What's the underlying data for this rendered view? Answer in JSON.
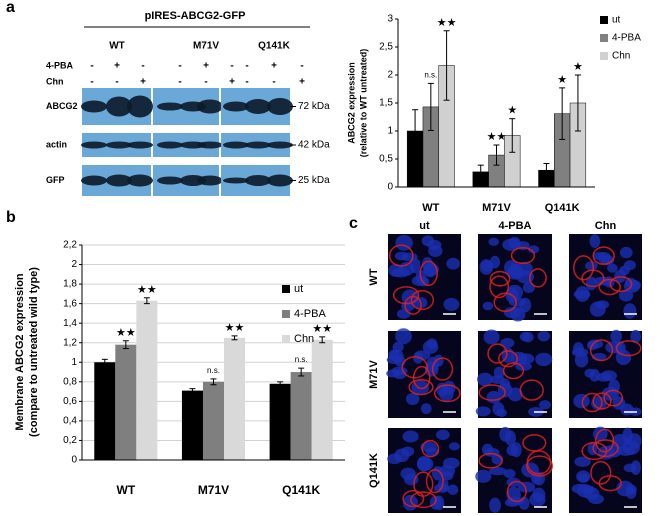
{
  "panel_labels": [
    "a",
    "b",
    "c"
  ],
  "blot": {
    "header": "pIRES-ABCG2-GFP",
    "groups": [
      "WT",
      "M71V",
      "Q141K"
    ],
    "treatments": [
      {
        "name": "4-PBA",
        "signs": [
          "-",
          "+",
          "-",
          "-",
          "+",
          "-",
          "-",
          "+",
          "-"
        ]
      },
      {
        "name": "Chn",
        "signs": [
          "-",
          "-",
          "+",
          "-",
          "-",
          "+",
          "-",
          "-",
          "+"
        ]
      }
    ],
    "rows": [
      {
        "label": "ABCG2",
        "size": "72 kDa"
      },
      {
        "label": "actin",
        "size": "42 kDa"
      },
      {
        "label": "GFP",
        "size": "25 kDa"
      }
    ]
  },
  "chart_data": [
    {
      "type": "bar",
      "y_label": [
        "ABCG2 expression",
        "(relative to WT untreated)"
      ],
      "categories": [
        "WT",
        "M71V",
        "Q141K"
      ],
      "series": [
        {
          "name": "ut",
          "color": "#000000",
          "values": [
            1.0,
            0.27,
            0.3
          ],
          "errors": [
            0.38,
            0.12,
            0.12
          ],
          "annotations": [
            null,
            null,
            null
          ]
        },
        {
          "name": "4-PBA",
          "color": "#808080",
          "values": [
            1.43,
            0.57,
            1.31
          ],
          "errors": [
            0.42,
            0.18,
            0.46
          ],
          "annotations": [
            "n.s.",
            "★★",
            "★"
          ]
        },
        {
          "name": "Chn",
          "color": "#d0d0d0",
          "values": [
            2.17,
            0.92,
            1.5
          ],
          "errors": [
            0.62,
            0.3,
            0.5
          ],
          "annotations": [
            "★★",
            "★",
            "★"
          ]
        }
      ],
      "ylim": [
        0,
        3
      ],
      "yticks": [
        0,
        {
          "value": 0.5,
          "label": "0,5"
        },
        1,
        {
          "value": 1.5,
          "label": "1,5"
        },
        2,
        {
          "value": 2.5,
          "label": "2,5"
        },
        3
      ],
      "grid": false
    },
    {
      "type": "bar",
      "y_label": [
        "Membrane ABCG2 expression",
        "(compare to untreated wild type)"
      ],
      "categories": [
        "WT",
        "M71V",
        "Q141K"
      ],
      "series": [
        {
          "name": "ut",
          "color": "#000000",
          "values": [
            1.0,
            0.71,
            0.78
          ],
          "errors": [
            0.03,
            0.02,
            0.02
          ],
          "annotations": [
            null,
            null,
            null
          ]
        },
        {
          "name": "4-PBA",
          "color": "#7f7f7f",
          "values": [
            1.18,
            0.8,
            0.9
          ],
          "errors": [
            0.04,
            0.03,
            0.04
          ],
          "annotations": [
            "★★",
            "n.s.",
            "n.s."
          ]
        },
        {
          "name": "Chn",
          "color": "#d9d9d9",
          "values": [
            1.63,
            1.25,
            1.23
          ],
          "errors": [
            0.03,
            0.02,
            0.03
          ],
          "annotations": [
            "★★",
            "★★",
            "★★"
          ]
        }
      ],
      "ylim": [
        0,
        2.2
      ],
      "yticks": [
        0,
        {
          "value": 0.2,
          "label": "0,2"
        },
        {
          "value": 0.4,
          "label": "0,4"
        },
        {
          "value": 0.6,
          "label": "0,6"
        },
        {
          "value": 0.8,
          "label": "0,8"
        },
        1,
        {
          "value": 1.2,
          "label": "1,2"
        },
        {
          "value": 1.4,
          "label": "1,4"
        },
        {
          "value": 1.6,
          "label": "1,6"
        },
        {
          "value": 1.8,
          "label": "1,8"
        },
        2,
        {
          "value": 2.2,
          "label": "2,2"
        }
      ],
      "grid": true
    }
  ],
  "microscopy": {
    "columns": [
      "ut",
      "4-PBA",
      "Chn"
    ],
    "rows": [
      "WT",
      "M71V",
      "Q141K"
    ]
  }
}
